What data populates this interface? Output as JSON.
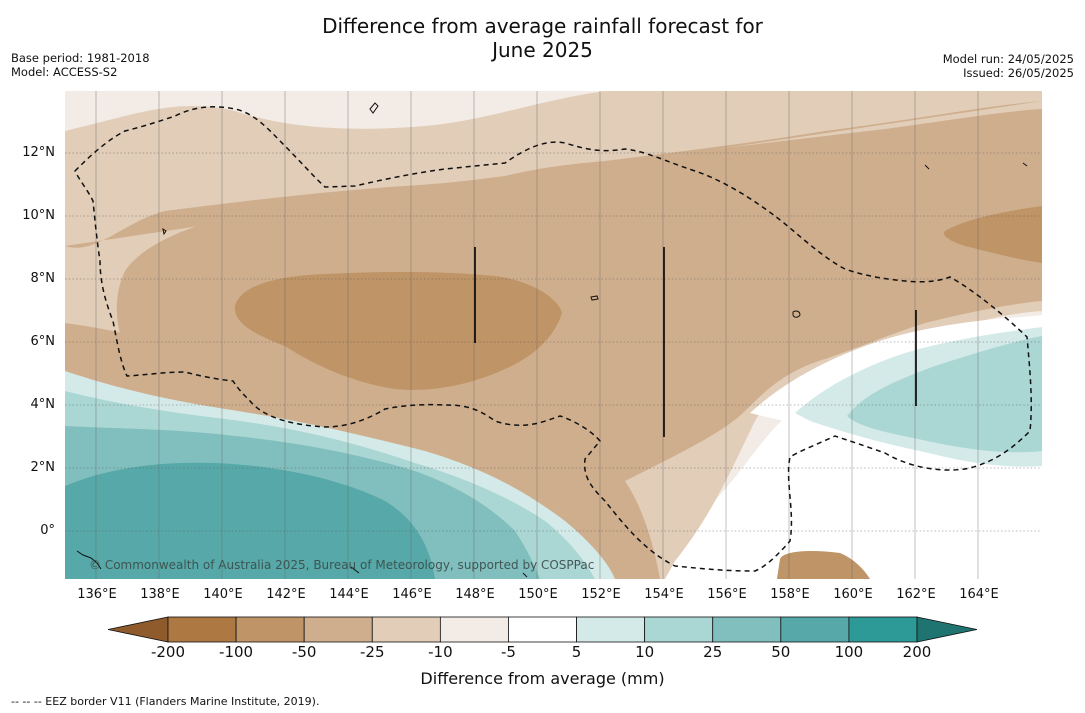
{
  "title_line1": "Difference from average rainfall forecast for",
  "title_line2": "June 2025",
  "meta_left": {
    "base_period": "Base period: 1981-2018",
    "model": "Model: ACCESS-S2"
  },
  "meta_right": {
    "model_run": "Model run: 24/05/2025",
    "issued": "Issued: 26/05/2025"
  },
  "lat_labels": [
    "12°N",
    "10°N",
    "8°N",
    "6°N",
    "4°N",
    "2°N",
    "0°"
  ],
  "lon_labels": [
    "136°E",
    "138°E",
    "140°E",
    "142°E",
    "144°E",
    "146°E",
    "148°E",
    "150°E",
    "152°E",
    "154°E",
    "156°E",
    "158°E",
    "160°E",
    "162°E",
    "164°E"
  ],
  "copyright": "© Commonwealth of Australia 2025, Bureau of Meteorology, supported by COSPPac",
  "colorbar": {
    "title": "Difference from average (mm)",
    "ticks": [
      "-200",
      "-100",
      "-50",
      "-25",
      "-10",
      "-5",
      "5",
      "10",
      "25",
      "50",
      "100",
      "200"
    ],
    "colors": [
      "#ad7841",
      "#bf9466",
      "#cfae8d",
      "#e1cdb8",
      "#f3ebe5",
      "#ffffff",
      "#d4eae8",
      "#aad6d4",
      "#80bfbd",
      "#56a9a8",
      "#2e9a97"
    ],
    "under_color": "#8f5b2c",
    "over_color": "#1f7472"
  },
  "footnote": "--  --  -- EEZ border V11 (Flanders Marine Institute, 2019)."
}
